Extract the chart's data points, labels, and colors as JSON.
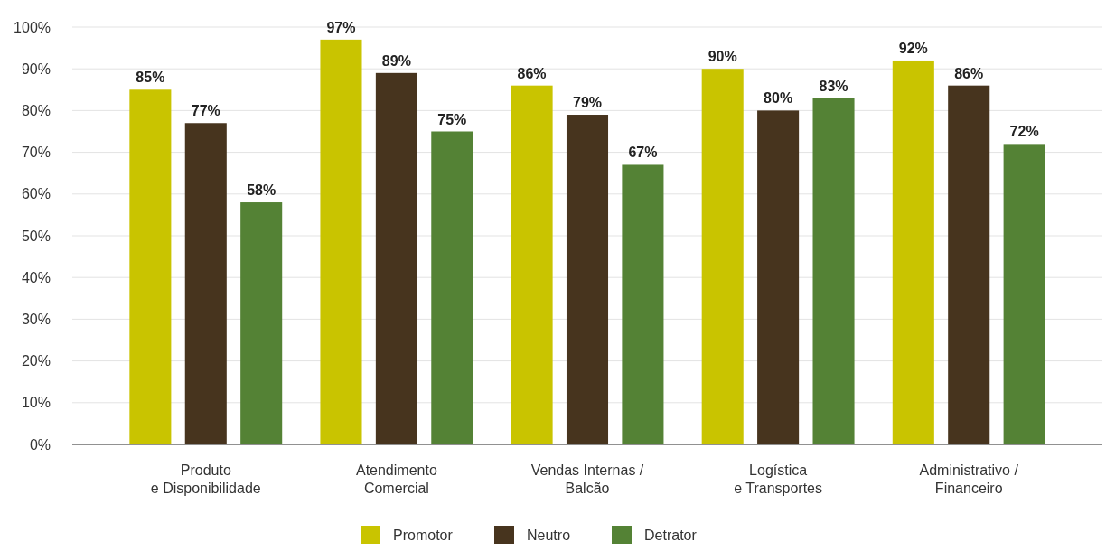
{
  "chart_data": {
    "type": "bar",
    "categories": [
      "Produto\ne Disponibilidade",
      "Atendimento\nComercial",
      "Vendas Internas /\nBalcão",
      "Logística\ne Transportes",
      "Administrativo /\nFinanceiro"
    ],
    "series": [
      {
        "name": "Promotor",
        "color": "#c9c400",
        "values": [
          85,
          97,
          86,
          90,
          92
        ]
      },
      {
        "name": "Neutro",
        "color": "#47341e",
        "values": [
          77,
          89,
          79,
          80,
          86
        ]
      },
      {
        "name": "Detrator",
        "color": "#548235",
        "values": [
          58,
          75,
          67,
          83,
          72
        ]
      }
    ],
    "ylim": [
      0,
      100
    ],
    "yticks": [
      {
        "value": 0,
        "label": "0%"
      },
      {
        "value": 10,
        "label": "10%"
      },
      {
        "value": 20,
        "label": "20%"
      },
      {
        "value": 30,
        "label": "30%"
      },
      {
        "value": 40,
        "label": "40%"
      },
      {
        "value": 50,
        "label": "50%"
      },
      {
        "value": 60,
        "label": "60%"
      },
      {
        "value": 70,
        "label": "70%"
      },
      {
        "value": 80,
        "label": "80%"
      },
      {
        "value": 90,
        "label": "90%"
      },
      {
        "value": 100,
        "label": "100%"
      }
    ],
    "value_labels": [
      [
        "85%",
        "97%",
        "86%",
        "90%",
        "92%"
      ],
      [
        "77%",
        "89%",
        "79%",
        "80%",
        "86%"
      ],
      [
        "58%",
        "75%",
        "67%",
        "83%",
        "72%"
      ]
    ],
    "grid": "y",
    "legend": "bottom"
  }
}
